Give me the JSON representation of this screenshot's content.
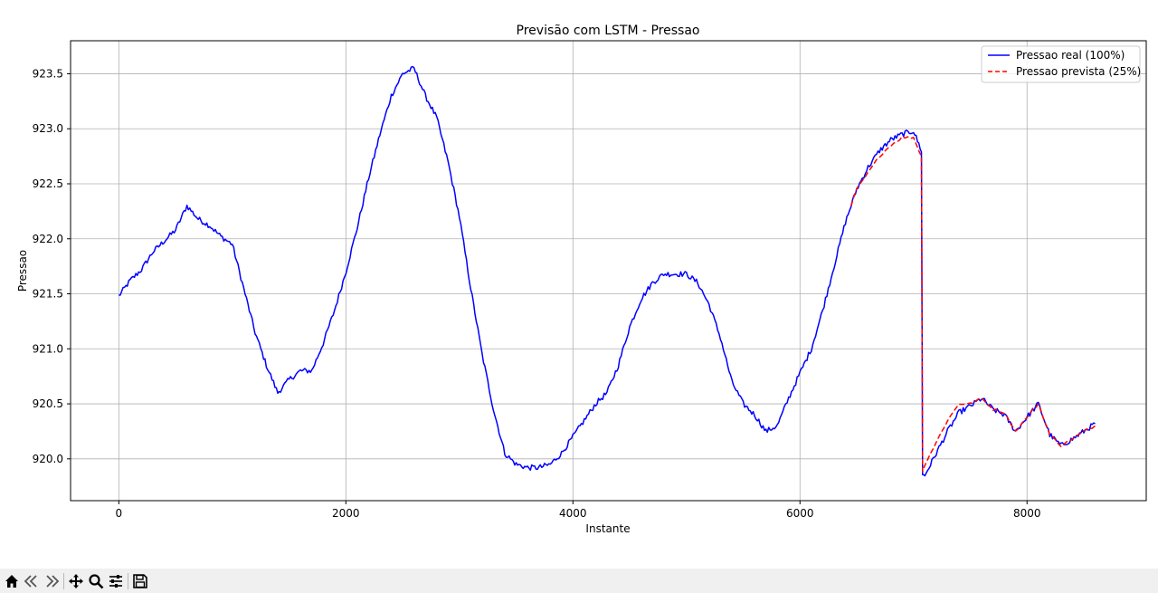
{
  "colors": {
    "real": "#0000ff",
    "prevista": "#ff0000",
    "grid": "#b0b0b0",
    "axis": "#000000",
    "toolbar_bg": "#f0f0f0"
  },
  "toolbar": {
    "icons": [
      "home-icon",
      "back-icon",
      "forward-icon",
      "pan-icon",
      "zoom-icon",
      "configure-subplots-icon",
      "save-icon"
    ]
  },
  "chart_data": {
    "type": "line",
    "title": "Previsão com LSTM - Pressao",
    "xlabel": "Instante",
    "ylabel": "Pressao",
    "xlim": [
      -425,
      9050
    ],
    "ylim": [
      919.62,
      923.8
    ],
    "xticks": [
      0,
      2000,
      4000,
      6000,
      8000
    ],
    "yticks": [
      920.0,
      920.5,
      921.0,
      921.5,
      922.0,
      922.5,
      923.0,
      923.5
    ],
    "xtick_labels": [
      "0",
      "2000",
      "4000",
      "6000",
      "8000"
    ],
    "ytick_labels": [
      "920.0",
      "920.5",
      "921.0",
      "921.5",
      "922.0",
      "922.5",
      "923.0",
      "923.5"
    ],
    "grid": true,
    "legend_position": "top-right",
    "series": [
      {
        "name": "Pressao real (100%)",
        "style": "solid",
        "x": [
          0,
          100,
          200,
          300,
          400,
          500,
          600,
          700,
          800,
          900,
          1000,
          1100,
          1200,
          1300,
          1400,
          1500,
          1600,
          1700,
          1800,
          1900,
          2000,
          2100,
          2200,
          2300,
          2400,
          2500,
          2600,
          2700,
          2800,
          2900,
          3000,
          3100,
          3200,
          3300,
          3400,
          3500,
          3600,
          3700,
          3800,
          3900,
          4000,
          4100,
          4200,
          4300,
          4400,
          4500,
          4600,
          4700,
          4800,
          4900,
          5000,
          5100,
          5200,
          5300,
          5400,
          5500,
          5600,
          5700,
          5800,
          5900,
          6000,
          6100,
          6200,
          6300,
          6400,
          6500,
          6600,
          6700,
          6800,
          6900,
          7000,
          7070,
          7080,
          7100,
          7200,
          7300,
          7400,
          7500,
          7600,
          7700,
          7800,
          7900,
          8000,
          8100,
          8200,
          8300,
          8400,
          8500,
          8600
        ],
        "y": [
          921.48,
          921.62,
          921.72,
          921.88,
          921.98,
          922.08,
          922.3,
          922.18,
          922.12,
          922.02,
          921.95,
          921.55,
          921.15,
          920.85,
          920.6,
          920.72,
          920.8,
          920.8,
          921.05,
          921.35,
          921.7,
          922.1,
          922.55,
          922.95,
          923.3,
          923.5,
          923.55,
          923.3,
          923.1,
          922.7,
          922.2,
          921.55,
          920.95,
          920.45,
          920.05,
          919.95,
          919.92,
          919.92,
          919.95,
          920.05,
          920.2,
          920.35,
          920.5,
          920.6,
          920.85,
          921.2,
          921.45,
          921.6,
          921.68,
          921.68,
          921.68,
          921.6,
          921.4,
          921.1,
          920.7,
          920.5,
          920.4,
          920.25,
          920.3,
          920.55,
          920.78,
          921.0,
          921.35,
          921.75,
          922.15,
          922.45,
          922.65,
          922.8,
          922.9,
          922.95,
          922.98,
          922.8,
          919.85,
          919.85,
          920.05,
          920.25,
          920.42,
          920.48,
          920.55,
          920.45,
          920.4,
          920.25,
          920.38,
          920.5,
          920.22,
          920.12,
          920.18,
          920.25,
          920.32
        ]
      },
      {
        "name": "Pressao prevista (25%)",
        "style": "dashed",
        "x": [
          6450,
          6500,
          6600,
          6700,
          6800,
          6900,
          7000,
          7070,
          7080,
          7100,
          7200,
          7300,
          7400,
          7500,
          7600,
          7700,
          7800,
          7900,
          8000,
          8100,
          8200,
          8300,
          8400,
          8500,
          8600
        ],
        "y": [
          922.3,
          922.45,
          922.6,
          922.75,
          922.85,
          922.92,
          922.92,
          922.75,
          919.88,
          919.95,
          920.15,
          920.35,
          920.5,
          920.5,
          920.55,
          920.45,
          920.42,
          920.25,
          920.38,
          920.5,
          920.22,
          920.12,
          920.18,
          920.25,
          920.3
        ]
      }
    ]
  }
}
